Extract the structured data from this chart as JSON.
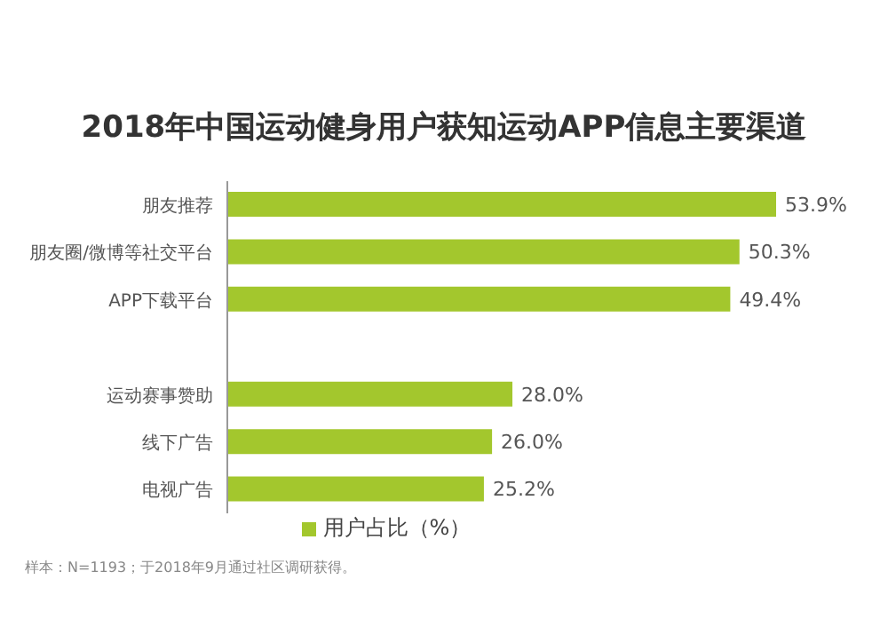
{
  "chart_data": {
    "type": "bar",
    "orientation": "horizontal",
    "title": "2018年中国运动健身用户获知运动APP信息主要渠道",
    "categories": [
      "朋友推荐",
      "朋友圈/微博等社交平台",
      "APP下载平台",
      null,
      "运动赛事赞助",
      "线下广告",
      "电视广告"
    ],
    "series": [
      {
        "name": "用户占比（%）",
        "color": "#a3c72d",
        "values": [
          53.9,
          50.3,
          49.4,
          null,
          28.0,
          26.0,
          25.2
        ],
        "value_labels": [
          "53.9%",
          "50.3%",
          "49.4%",
          null,
          "28.0%",
          "26.0%",
          "25.2%"
        ]
      }
    ],
    "legend": "bottom",
    "annotations": [
      "样本：N=1193；于2018年9月通过社区调研获得。"
    ]
  }
}
